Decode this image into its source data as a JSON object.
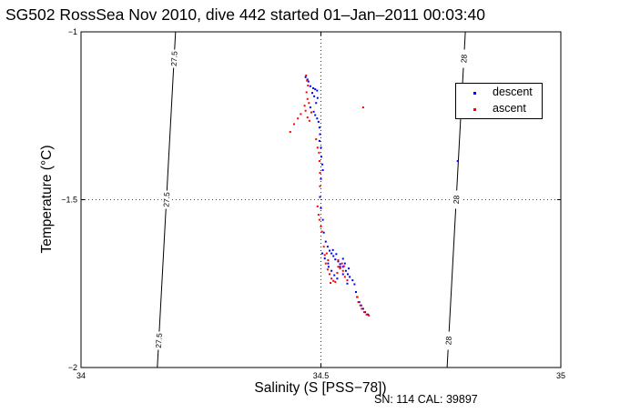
{
  "chart_data": {
    "type": "scatter",
    "title": "SG502 RossSea Nov 2010, dive 442 started 01–Jan–2011 00:03:40",
    "xlabel": "Salinity (S [PSS−78])",
    "ylabel": "Temperature (°C)",
    "xlim": [
      34,
      35
    ],
    "ylim": [
      -2,
      -1
    ],
    "xticks": [
      34,
      34.5,
      35
    ],
    "xtick_labels": [
      "34",
      "34.5",
      "35"
    ],
    "yticks": [
      -2,
      -1.5,
      -1
    ],
    "ytick_labels": [
      "−2",
      "−1.5",
      "−1"
    ],
    "grid": "dotted at ticks",
    "legend_position": "top-right",
    "isopycnals": [
      {
        "label": "27.5",
        "points": [
          [
            34.159,
            -2.0
          ],
          [
            34.197,
            -1.0
          ]
        ]
      },
      {
        "label": "28",
        "points": [
          [
            34.763,
            -2.0
          ],
          [
            34.801,
            -1.0
          ]
        ]
      }
    ],
    "series": [
      {
        "name": "descent",
        "color": "#0000ff",
        "points": [
          [
            34.468,
            -1.135
          ],
          [
            34.472,
            -1.142
          ],
          [
            34.474,
            -1.148
          ],
          [
            34.478,
            -1.162
          ],
          [
            34.484,
            -1.168
          ],
          [
            34.488,
            -1.171
          ],
          [
            34.492,
            -1.175
          ],
          [
            34.482,
            -1.182
          ],
          [
            34.486,
            -1.192
          ],
          [
            34.493,
            -1.197
          ],
          [
            34.49,
            -1.212
          ],
          [
            34.478,
            -1.225
          ],
          [
            34.485,
            -1.238
          ],
          [
            34.488,
            -1.248
          ],
          [
            34.492,
            -1.258
          ],
          [
            34.495,
            -1.268
          ],
          [
            34.497,
            -1.285
          ],
          [
            34.498,
            -1.305
          ],
          [
            34.497,
            -1.325
          ],
          [
            34.5,
            -1.345
          ],
          [
            34.501,
            -1.372
          ],
          [
            34.503,
            -1.395
          ],
          [
            34.504,
            -1.412
          ],
          [
            34.5,
            -1.438
          ],
          [
            34.498,
            -1.492
          ],
          [
            34.5,
            -1.525
          ],
          [
            34.504,
            -1.56
          ],
          [
            34.506,
            -1.598
          ],
          [
            34.51,
            -1.625
          ],
          [
            34.514,
            -1.64
          ],
          [
            34.518,
            -1.652
          ],
          [
            34.522,
            -1.66
          ],
          [
            34.526,
            -1.668
          ],
          [
            34.53,
            -1.678
          ],
          [
            34.536,
            -1.684
          ],
          [
            34.54,
            -1.692
          ],
          [
            34.546,
            -1.7
          ],
          [
            34.552,
            -1.712
          ],
          [
            34.556,
            -1.722
          ],
          [
            34.56,
            -1.73
          ],
          [
            34.566,
            -1.74
          ],
          [
            34.57,
            -1.752
          ],
          [
            34.573,
            -1.775
          ],
          [
            34.576,
            -1.79
          ],
          [
            34.58,
            -1.805
          ],
          [
            34.584,
            -1.815
          ],
          [
            34.588,
            -1.825
          ],
          [
            34.592,
            -1.835
          ],
          [
            34.598,
            -1.842
          ],
          [
            34.516,
            -1.7
          ],
          [
            34.522,
            -1.712
          ],
          [
            34.528,
            -1.725
          ],
          [
            34.534,
            -1.735
          ],
          [
            34.54,
            -1.7
          ],
          [
            34.55,
            -1.69
          ],
          [
            34.558,
            -1.705
          ],
          [
            34.555,
            -1.75
          ],
          [
            34.546,
            -1.722
          ],
          [
            34.503,
            -1.66
          ],
          [
            34.508,
            -1.675
          ],
          [
            34.515,
            -1.69
          ],
          [
            34.525,
            -1.65
          ],
          [
            34.532,
            -1.662
          ],
          [
            34.546,
            -1.676
          ],
          [
            34.785,
            -1.385
          ]
        ]
      },
      {
        "name": "ascent",
        "color": "#ff0000",
        "points": [
          [
            34.469,
            -1.13
          ],
          [
            34.471,
            -1.145
          ],
          [
            34.473,
            -1.16
          ],
          [
            34.47,
            -1.18
          ],
          [
            34.472,
            -1.2
          ],
          [
            34.475,
            -1.212
          ],
          [
            34.466,
            -1.22
          ],
          [
            34.468,
            -1.235
          ],
          [
            34.458,
            -1.245
          ],
          [
            34.452,
            -1.258
          ],
          [
            34.444,
            -1.275
          ],
          [
            34.436,
            -1.298
          ],
          [
            34.472,
            -1.255
          ],
          [
            34.476,
            -1.265
          ],
          [
            34.48,
            -1.24
          ],
          [
            34.588,
            -1.225
          ],
          [
            34.49,
            -1.32
          ],
          [
            34.493,
            -1.345
          ],
          [
            34.496,
            -1.36
          ],
          [
            34.497,
            -1.385
          ],
          [
            34.498,
            -1.42
          ],
          [
            34.498,
            -1.46
          ],
          [
            34.493,
            -1.52
          ],
          [
            34.495,
            -1.545
          ],
          [
            34.497,
            -1.56
          ],
          [
            34.5,
            -1.58
          ],
          [
            34.502,
            -1.595
          ],
          [
            34.506,
            -1.64
          ],
          [
            34.508,
            -1.665
          ],
          [
            34.51,
            -1.69
          ],
          [
            34.514,
            -1.708
          ],
          [
            34.518,
            -1.722
          ],
          [
            34.522,
            -1.735
          ],
          [
            34.52,
            -1.748
          ],
          [
            34.526,
            -1.742
          ],
          [
            34.534,
            -1.718
          ],
          [
            34.536,
            -1.7
          ],
          [
            34.54,
            -1.705
          ],
          [
            34.546,
            -1.712
          ],
          [
            34.55,
            -1.73
          ],
          [
            34.544,
            -1.69
          ],
          [
            34.548,
            -1.698
          ],
          [
            34.575,
            -1.79
          ],
          [
            34.578,
            -1.805
          ],
          [
            34.582,
            -1.815
          ],
          [
            34.585,
            -1.825
          ],
          [
            34.59,
            -1.835
          ],
          [
            34.595,
            -1.842
          ],
          [
            34.6,
            -1.845
          ],
          [
            34.53,
            -1.745
          ],
          [
            34.512,
            -1.66
          ],
          [
            34.515,
            -1.68
          ],
          [
            34.536,
            -1.68
          ],
          [
            34.555,
            -1.74
          ]
        ]
      }
    ]
  },
  "footnote": "SN: 114  CAL: 39897"
}
